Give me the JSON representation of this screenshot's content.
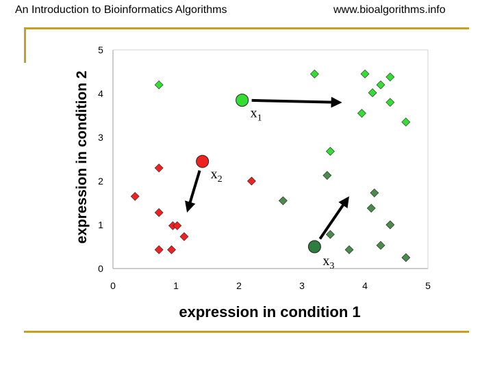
{
  "header": {
    "left": "An Introduction to Bioinformatics Algorithms",
    "right": "www.bioalgorithms.info"
  },
  "colors": {
    "rule": "#c8a020",
    "cluster_green": "#33dd33",
    "cluster_red": "#ee2222",
    "cluster_dark": "#4a8a4a",
    "center_dark": "#2e7d3e",
    "arrow": "#000000"
  },
  "chart_data": {
    "type": "scatter",
    "title": "",
    "xlabel": "expression in condition 1",
    "ylabel": "expression in condition 2",
    "xlim": [
      0,
      5
    ],
    "ylim": [
      0,
      5
    ],
    "xticks": [
      "0",
      "1",
      "2",
      "3",
      "4",
      "5"
    ],
    "yticks": [
      "0",
      "1",
      "2",
      "3",
      "4",
      "5"
    ],
    "grid": false,
    "series": [
      {
        "marker": "diamond",
        "color": "#33dd33",
        "points": [
          [
            0.73,
            4.2
          ],
          [
            3.2,
            4.45
          ],
          [
            4.0,
            4.45
          ],
          [
            4.4,
            4.38
          ],
          [
            4.25,
            4.2
          ],
          [
            4.12,
            4.02
          ],
          [
            4.4,
            3.8
          ],
          [
            3.95,
            3.55
          ],
          [
            4.65,
            3.35
          ],
          [
            3.45,
            2.68
          ]
        ]
      },
      {
        "marker": "diamond",
        "color": "#ee2222",
        "points": [
          [
            0.73,
            2.3
          ],
          [
            0.35,
            1.65
          ],
          [
            0.73,
            1.28
          ],
          [
            0.95,
            0.98
          ],
          [
            1.02,
            0.98
          ],
          [
            1.13,
            0.73
          ],
          [
            0.73,
            0.43
          ],
          [
            0.93,
            0.43
          ],
          [
            2.2,
            2.0
          ]
        ]
      },
      {
        "marker": "diamond",
        "color": "#4a8a4a",
        "points": [
          [
            3.4,
            2.13
          ],
          [
            4.15,
            1.73
          ],
          [
            2.7,
            1.55
          ],
          [
            4.1,
            1.38
          ],
          [
            4.4,
            1.0
          ],
          [
            3.45,
            0.78
          ],
          [
            4.25,
            0.53
          ],
          [
            3.75,
            0.43
          ],
          [
            4.65,
            0.25
          ]
        ]
      }
    ],
    "centers": [
      {
        "name": "x1",
        "sub": "1",
        "x": 2.05,
        "y": 3.85,
        "color": "#33dd33",
        "arrow_to": [
          3.55,
          3.8
        ]
      },
      {
        "name": "x2",
        "sub": "2",
        "x": 1.42,
        "y": 2.45,
        "color": "#ee2222",
        "arrow_to": [
          1.2,
          1.4
        ]
      },
      {
        "name": "x3",
        "sub": "3",
        "x": 3.2,
        "y": 0.5,
        "color": "#2e7d3e",
        "arrow_to": [
          3.7,
          1.55
        ]
      }
    ],
    "center_labels": {
      "prefix": "x"
    }
  }
}
